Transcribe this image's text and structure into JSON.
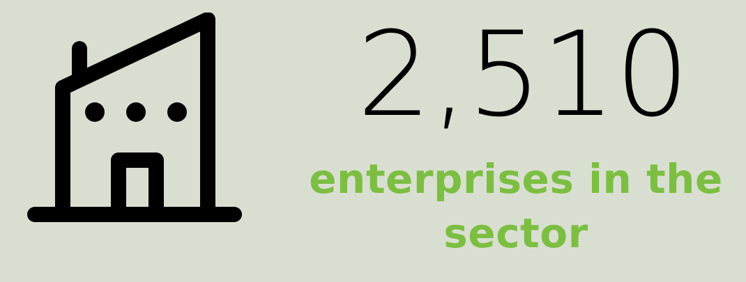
{
  "stat": {
    "icon": "building-icon",
    "value": "2,510",
    "caption": "enterprises in the sector"
  },
  "colors": {
    "background": "#d9dfd0",
    "value": "#000000",
    "caption": "#7cbe42",
    "icon": "#000000"
  }
}
